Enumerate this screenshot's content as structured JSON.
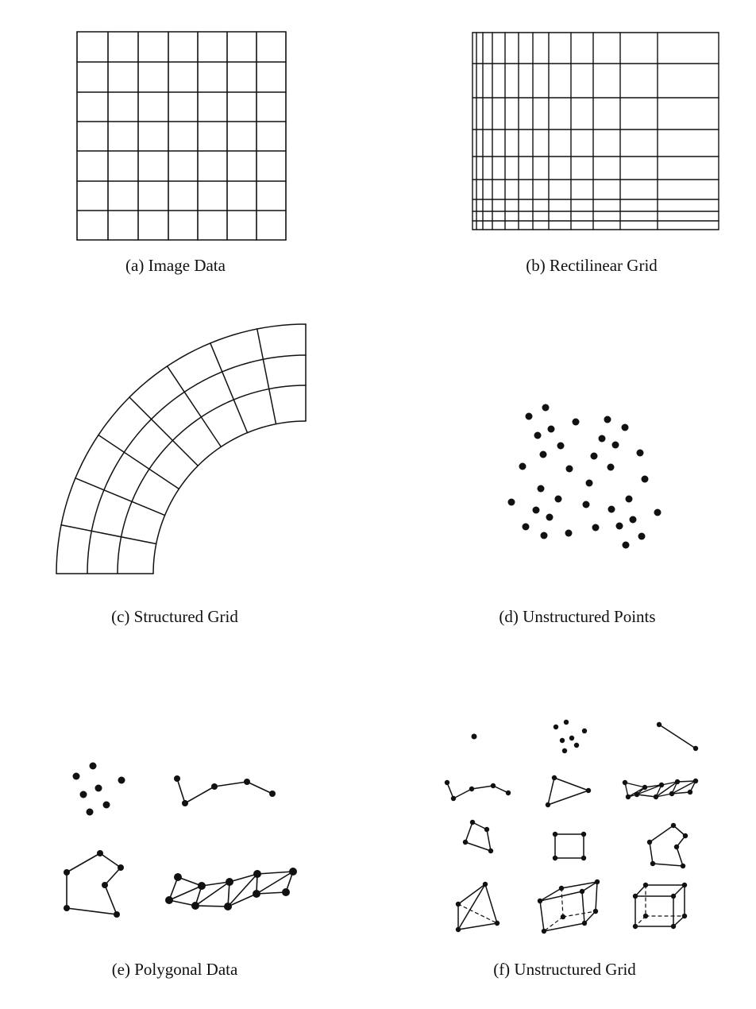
{
  "figure": {
    "panels": [
      {
        "id": "a",
        "caption": "(a) Image Data"
      },
      {
        "id": "b",
        "caption": "(b) Rectilinear Grid"
      },
      {
        "id": "c",
        "caption": "(c) Structured Grid"
      },
      {
        "id": "d",
        "caption": "(d) Unstructured Points"
      },
      {
        "id": "e",
        "caption": "(e) Polygonal Data"
      },
      {
        "id": "f",
        "caption": "(f) Unstructured Grid"
      }
    ]
  }
}
